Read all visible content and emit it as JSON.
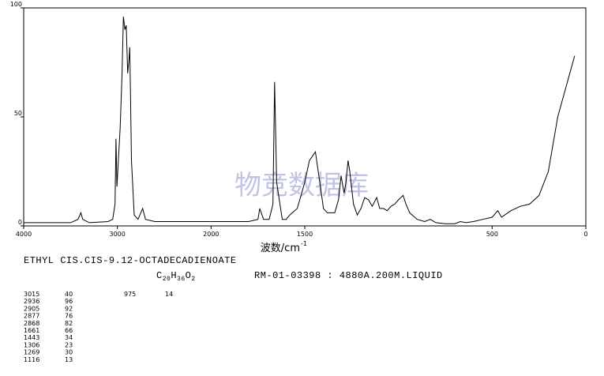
{
  "chart_data": {
    "type": "line",
    "title": "ETHYL CIS.CIS-9.12-OCTADECADIENOATE",
    "formula": {
      "parts": [
        "C",
        "20",
        "H",
        "36",
        "O",
        "2"
      ]
    },
    "sample": "RM-01-03398 : 4880A.200M.LIQUID",
    "x_label": "波数/cm",
    "x_label_sup": "-1",
    "watermark": "物竞数据库",
    "xlim": [
      4000,
      0
    ],
    "x_scale_break": 2000,
    "x_scale_factor_above_break": 0.5,
    "xticks": [
      4000,
      3000,
      2000,
      1500,
      500,
      0
    ],
    "ylim": [
      0,
      100
    ],
    "yticks": [
      0,
      50,
      100
    ],
    "series": [
      {
        "color": "#000000",
        "x": [
          4000,
          3500,
          3420,
          3390,
          3370,
          3300,
          3100,
          3050,
          3025,
          3015,
          3005,
          2990,
          2970,
          2950,
          2936,
          2920,
          2905,
          2890,
          2877,
          2868,
          2860,
          2850,
          2820,
          2780,
          2730,
          2700,
          2600,
          2400,
          2200,
          2000,
          1800,
          1750,
          1740,
          1720,
          1690,
          1670,
          1661,
          1650,
          1620,
          1600,
          1580,
          1540,
          1500,
          1475,
          1443,
          1420,
          1400,
          1380,
          1340,
          1320,
          1306,
          1290,
          1280,
          1269,
          1260,
          1240,
          1220,
          1200,
          1180,
          1160,
          1140,
          1116,
          1100,
          1080,
          1060,
          1040,
          1020,
          1000,
          975,
          960,
          940,
          900,
          860,
          830,
          800,
          750,
          700,
          670,
          640,
          600,
          550,
          500,
          470,
          450,
          400,
          350,
          300,
          250,
          200,
          150,
          60
        ],
        "values": [
          1.5,
          1.5,
          3,
          6,
          3,
          1.5,
          2,
          3,
          10,
          40,
          18,
          30,
          45,
          70,
          96,
          90,
          92,
          70,
          76,
          82,
          60,
          30,
          5,
          3,
          8,
          3,
          2,
          2,
          2,
          2,
          2,
          3,
          8,
          3,
          3,
          10,
          66,
          20,
          3,
          3,
          5,
          8,
          20,
          30,
          34,
          20,
          8,
          6,
          6,
          12,
          23,
          15,
          20,
          30,
          25,
          10,
          5,
          8,
          13,
          12,
          9,
          13,
          8,
          8,
          7,
          9,
          10,
          12,
          14,
          10,
          6,
          3,
          2,
          3,
          1.5,
          1,
          1,
          2,
          1.5,
          2,
          3,
          4,
          7,
          4,
          7,
          9,
          10,
          14,
          25,
          50,
          78
        ]
      }
    ],
    "peaks": [
      [
        3015,
        40
      ],
      [
        2936,
        96
      ],
      [
        2905,
        92
      ],
      [
        2877,
        76
      ],
      [
        2868,
        82
      ],
      [
        1661,
        66
      ],
      [
        1443,
        34
      ],
      [
        1306,
        23
      ],
      [
        1269,
        30
      ],
      [
        1116,
        13
      ],
      [
        975,
        14
      ]
    ]
  }
}
